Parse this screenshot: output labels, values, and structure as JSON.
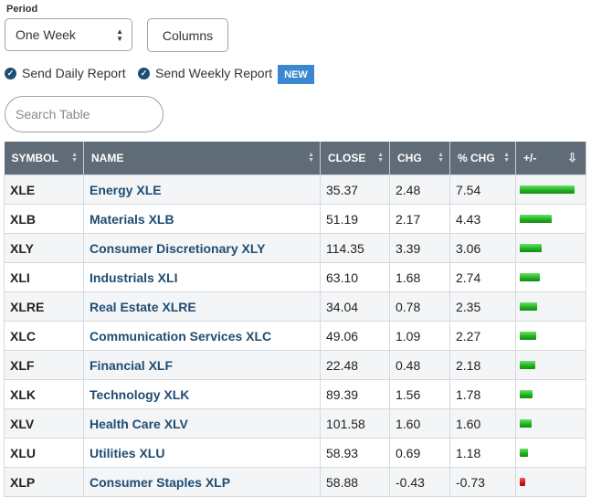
{
  "period": {
    "label": "Period",
    "selected": "One Week"
  },
  "columns_label": "Columns",
  "reports": {
    "daily": "Send Daily Report",
    "weekly": "Send Weekly Report",
    "badge": "NEW"
  },
  "search": {
    "placeholder": "Search Table"
  },
  "table": {
    "headers": {
      "symbol": "SYMBOL",
      "name": "NAME",
      "close": "CLOSE",
      "chg": "CHG",
      "pct": "% CHG",
      "bar": "+/-"
    },
    "rows": [
      {
        "symbol": "XLE",
        "name": "Energy XLE",
        "close": "35.37",
        "chg": "2.48",
        "pct": "7.54",
        "value": 7.54
      },
      {
        "symbol": "XLB",
        "name": "Materials XLB",
        "close": "51.19",
        "chg": "2.17",
        "pct": "4.43",
        "value": 4.43
      },
      {
        "symbol": "XLY",
        "name": "Consumer Discretionary XLY",
        "close": "114.35",
        "chg": "3.39",
        "pct": "3.06",
        "value": 3.06
      },
      {
        "symbol": "XLI",
        "name": "Industrials XLI",
        "close": "63.10",
        "chg": "1.68",
        "pct": "2.74",
        "value": 2.74
      },
      {
        "symbol": "XLRE",
        "name": "Real Estate XLRE",
        "close": "34.04",
        "chg": "0.78",
        "pct": "2.35",
        "value": 2.35
      },
      {
        "symbol": "XLC",
        "name": "Communication Services XLC",
        "close": "49.06",
        "chg": "1.09",
        "pct": "2.27",
        "value": 2.27
      },
      {
        "symbol": "XLF",
        "name": "Financial XLF",
        "close": "22.48",
        "chg": "0.48",
        "pct": "2.18",
        "value": 2.18
      },
      {
        "symbol": "XLK",
        "name": "Technology XLK",
        "close": "89.39",
        "chg": "1.56",
        "pct": "1.78",
        "value": 1.78
      },
      {
        "symbol": "XLV",
        "name": "Health Care XLV",
        "close": "101.58",
        "chg": "1.60",
        "pct": "1.60",
        "value": 1.6
      },
      {
        "symbol": "XLU",
        "name": "Utilities XLU",
        "close": "58.93",
        "chg": "0.69",
        "pct": "1.18",
        "value": 1.18
      },
      {
        "symbol": "XLP",
        "name": "Consumer Staples XLP",
        "close": "58.88",
        "chg": "-0.43",
        "pct": "-0.73",
        "value": -0.73
      }
    ]
  },
  "colors": {
    "header_bg": "#5f6c78",
    "link": "#1f4d73",
    "badge": "#3a88cf",
    "positive": "#22b422",
    "negative": "#d41818"
  },
  "icons": {
    "check": "check-circle-icon",
    "sort": "sort-arrows-icon",
    "sort_desc": "sort-descending-icon",
    "select": "select-arrows-icon"
  }
}
